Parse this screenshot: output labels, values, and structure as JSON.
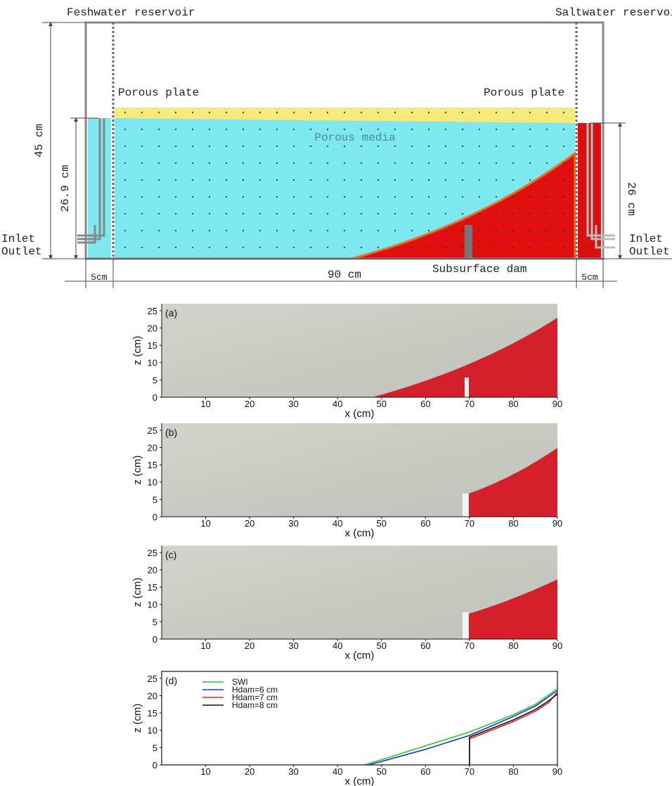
{
  "diagram": {
    "freshwater_reservoir": "Feshwater reservoir",
    "saltwater_reservoir": "Saltwater reservoir",
    "porous_plate_left": "Porous plate",
    "porous_plate_right": "Porous plate",
    "porous_media": "Porous media",
    "height_total": "45 cm",
    "height_fresh": "26.9 cm",
    "height_salt": "26 cm",
    "inlet_left": "Inlet",
    "outlet_left": "Outlet",
    "inlet_right": "Inlet",
    "outlet_right": "Outlet",
    "dam": "Subsurface dam",
    "width_left": "5cm",
    "width_media": "90 cm",
    "width_right": "5cm"
  },
  "chart_data": [
    {
      "type": "image",
      "label": "(a)",
      "xlabel": "x (cm)",
      "ylabel": "z (cm)",
      "xlim": [
        0,
        90
      ],
      "ylim": [
        0,
        27
      ],
      "xticks": [
        10,
        20,
        30,
        40,
        50,
        60,
        70,
        80,
        90
      ],
      "yticks": [
        0,
        5,
        10,
        15,
        20,
        25
      ]
    },
    {
      "type": "image",
      "label": "(b)",
      "xlabel": "x (cm)",
      "ylabel": "z (cm)",
      "xlim": [
        0,
        90
      ],
      "ylim": [
        0,
        27
      ],
      "xticks": [
        10,
        20,
        30,
        40,
        50,
        60,
        70,
        80,
        90
      ],
      "yticks": [
        0,
        5,
        10,
        15,
        20,
        25
      ]
    },
    {
      "type": "image",
      "label": "(c)",
      "xlabel": "x (cm)",
      "ylabel": "z (cm)",
      "xlim": [
        0,
        90
      ],
      "ylim": [
        0,
        27
      ],
      "xticks": [
        10,
        20,
        30,
        40,
        50,
        60,
        70,
        80,
        90
      ],
      "yticks": [
        0,
        5,
        10,
        15,
        20,
        25
      ]
    },
    {
      "type": "line",
      "label": "(d)",
      "xlabel": "x (cm)",
      "ylabel": "z (cm)",
      "xlim": [
        0,
        90
      ],
      "ylim": [
        0,
        27
      ],
      "xticks": [
        10,
        20,
        30,
        40,
        50,
        60,
        70,
        80,
        90
      ],
      "yticks": [
        0,
        5,
        10,
        15,
        20,
        25
      ],
      "series": [
        {
          "name": "SWI",
          "color": "#22cc22",
          "x": [
            46,
            50,
            60,
            70,
            80,
            85,
            90
          ],
          "values": [
            0,
            1.5,
            5.5,
            9.5,
            14.5,
            17.5,
            22
          ]
        },
        {
          "name": "Hdam=6 cm",
          "color": "#2233cc",
          "x": [
            47,
            50,
            60,
            70,
            80,
            85,
            90
          ],
          "values": [
            0,
            1,
            4.5,
            8.5,
            14,
            17,
            21.5
          ]
        },
        {
          "name": "Hdam=7 cm",
          "color": "#dd2222",
          "x": [
            70,
            70,
            75,
            80,
            85,
            88,
            90
          ],
          "values": [
            0,
            7.5,
            10,
            12.5,
            15.5,
            18,
            21
          ]
        },
        {
          "name": "Hdam=8 cm",
          "color": "#111111",
          "x": [
            70,
            70,
            75,
            80,
            85,
            88,
            90
          ],
          "values": [
            0,
            8,
            10.5,
            13,
            16,
            18.5,
            20.5
          ]
        }
      ]
    }
  ]
}
